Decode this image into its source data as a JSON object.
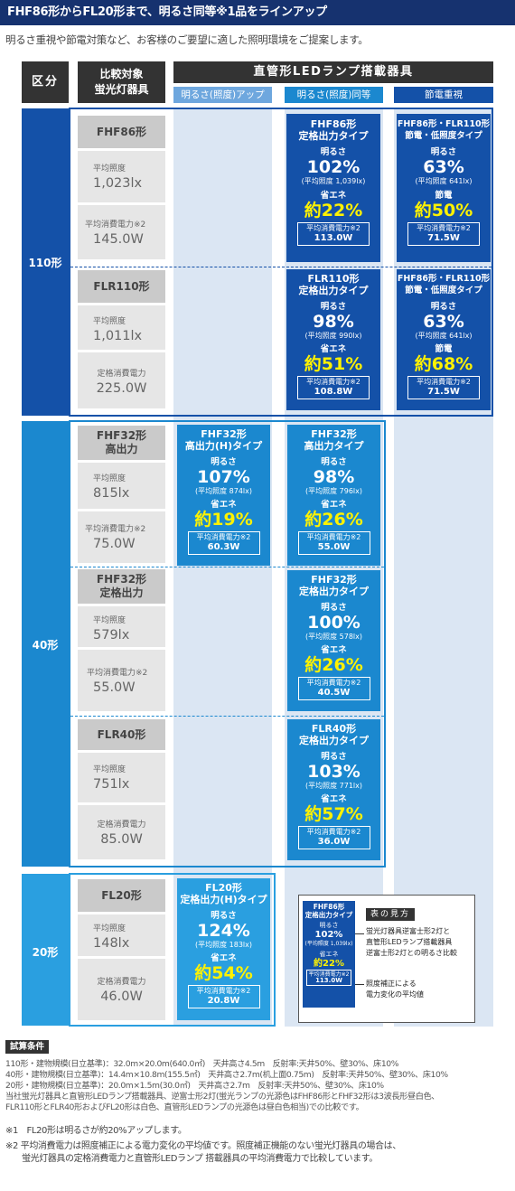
{
  "header": {
    "title": "FHF86形からFL20形まで、明るさ同等※1品をラインアップ",
    "intro": "明るさ重視や節電対策など、お客様のご要望に適した照明環境をご提案します。"
  },
  "table_header": {
    "kubun": "区分",
    "hikaku_1": "比較対象",
    "hikaku_2": "蛍光灯器具",
    "main": "直管形LEDランプ搭載器具",
    "sub_up": "明るさ(照度)アップ",
    "sub_eq": "明るさ(照度)同等",
    "sub_save": "節電重視"
  },
  "colors": {
    "navy": "#16326f",
    "group_110": "#1451a8",
    "group_40": "#1b88cf",
    "group_20": "#2a9fe0",
    "highlight": "#fff200"
  },
  "groups": {
    "g110": "110形",
    "g40": "40形",
    "g20": "20形"
  },
  "rows": {
    "fhf86": {
      "name": "FHF86形",
      "l1": "平均照度",
      "v1": "1,023lx",
      "l2": "平均消費電力※2",
      "v2": "145.0W"
    },
    "flr110": {
      "name": "FLR110形",
      "l1": "平均照度",
      "v1": "1,011lx",
      "l2": "定格消費電力",
      "v2": "225.0W"
    },
    "fhf32h": {
      "name1": "FHF32形",
      "name2": "高出力",
      "l1": "平均照度",
      "v1": "815lx",
      "l2": "平均消費電力※2",
      "v2": "75.0W"
    },
    "fhf32r": {
      "name1": "FHF32形",
      "name2": "定格出力",
      "l1": "平均照度",
      "v1": "579lx",
      "l2": "平均消費電力※2",
      "v2": "55.0W"
    },
    "flr40": {
      "name": "FLR40形",
      "l1": "平均照度",
      "v1": "751lx",
      "l2": "定格消費電力",
      "v2": "85.0W"
    },
    "fl20": {
      "name": "FL20形",
      "l1": "平均照度",
      "v1": "148lx",
      "l2": "定格消費電力",
      "v2": "46.0W"
    }
  },
  "cards": {
    "c1": {
      "t1": "FHF86形",
      "t2": "定格出力タイプ",
      "s1": "明るさ",
      "b1": "102%",
      "m1": "(平均照度 1,039lx)",
      "s2": "省エネ",
      "b2": "約22%",
      "bl": "平均消費電力※2",
      "bw": "113.0W"
    },
    "c2": {
      "t1": "FHF86形・FLR110形",
      "t2": "節電・低照度タイプ",
      "s1": "明るさ",
      "b1": "63%",
      "m1": "(平均照度 641lx)",
      "s2": "節電",
      "b2": "約50%",
      "bl": "平均消費電力※2",
      "bw": "71.5W"
    },
    "c3": {
      "t1": "FLR110形",
      "t2": "定格出力タイプ",
      "s1": "明るさ",
      "b1": "98%",
      "m1": "(平均照度 990lx)",
      "s2": "省エネ",
      "b2": "約51%",
      "bl": "平均消費電力※2",
      "bw": "108.8W"
    },
    "c4": {
      "t1": "FHF86形・FLR110形",
      "t2": "節電・低照度タイプ",
      "s1": "明るさ",
      "b1": "63%",
      "m1": "(平均照度 641lx)",
      "s2": "節電",
      "b2": "約68%",
      "bl": "平均消費電力※2",
      "bw": "71.5W"
    },
    "c5": {
      "t1": "FHF32形",
      "t2": "高出力(H)タイプ",
      "s1": "明るさ",
      "b1": "107%",
      "m1": "(平均照度 874lx)",
      "s2": "省エネ",
      "b2": "約19%",
      "bl": "平均消費電力※2",
      "bw": "60.3W"
    },
    "c6": {
      "t1": "FHF32形",
      "t2": "高出力タイプ",
      "s1": "明るさ",
      "b1": "98%",
      "m1": "(平均照度 796lx)",
      "s2": "省エネ",
      "b2": "約26%",
      "bl": "平均消費電力※2",
      "bw": "55.0W"
    },
    "c7": {
      "t1": "FHF32形",
      "t2": "定格出力タイプ",
      "s1": "明るさ",
      "b1": "100%",
      "m1": "(平均照度 578lx)",
      "s2": "省エネ",
      "b2": "約26%",
      "bl": "平均消費電力※2",
      "bw": "40.5W"
    },
    "c8": {
      "t1": "FLR40形",
      "t2": "定格出力タイプ",
      "s1": "明るさ",
      "b1": "103%",
      "m1": "(平均照度 771lx)",
      "s2": "省エネ",
      "b2": "約57%",
      "bl": "平均消費電力※2",
      "bw": "36.0W"
    },
    "c9": {
      "t1": "FL20形",
      "t2": "定格出力(H)タイプ",
      "s1": "明るさ",
      "b1": "124%",
      "m1": "(平均照度 183lx)",
      "s2": "省エネ",
      "b2": "約54%",
      "bl": "平均消費電力※2",
      "bw": "20.8W"
    }
  },
  "legend": {
    "mini_t1": "FHF86形",
    "mini_t2": "定格出力タイプ",
    "mini_s1": "明るさ",
    "mini_b1": "102%",
    "mini_m1": "(平均照度 1,039lx)",
    "mini_s2": "省エネ",
    "mini_b2": "約22%",
    "mini_bl": "平均消費電力※2",
    "mini_bw": "113.0W",
    "tag": "表の見方",
    "text1_a": "蛍光灯器具逆富士形2灯と",
    "text1_b": "直管形LEDランプ搭載器具",
    "text1_c": "逆富士形2灯との明るさ比較",
    "text2_a": "照度補正による",
    "text2_b": "電力変化の平均値"
  },
  "conditions": {
    "tag": "試算条件",
    "line1": "110形・建物規模(日立基準)：32.0m×20.0m(640.0㎡)　天井高さ4.5m　反射率:天井50%、壁30%、床10%",
    "line2": "40形・建物規模(日立基準)：14.4m×10.8m(155.5㎡)　天井高さ2.7m(机上面0.75m)　反射率:天井50%、壁30%、床10%",
    "line3": "20形・建物規模(日立基準)：20.0m×1.5m(30.0㎡)　天井高さ2.7m　反射率:天井50%、壁30%、床10%",
    "line4": "当社蛍光灯器具と直管形LEDランプ搭載器具、逆富士形2灯(蛍光ランプの光源色はFHF86形とFHF32形は3波長形昼白色、",
    "line5": "FLR110形とFLR40形およびFL20形は白色、直管形LEDランプの光源色は昼白色相当)での比較です。"
  },
  "notes": {
    "n1": "※1　FL20形は明るさが約20%アップします。",
    "n2a": "※2 平均消費電力は照度補正による電力変化の平均値です。照度補正機能のない蛍光灯器具の場合は、",
    "n2b": "蛍光灯器具の定格消費電力と直管形LEDランプ 搭載器具の平均消費電力で比較しています。"
  }
}
